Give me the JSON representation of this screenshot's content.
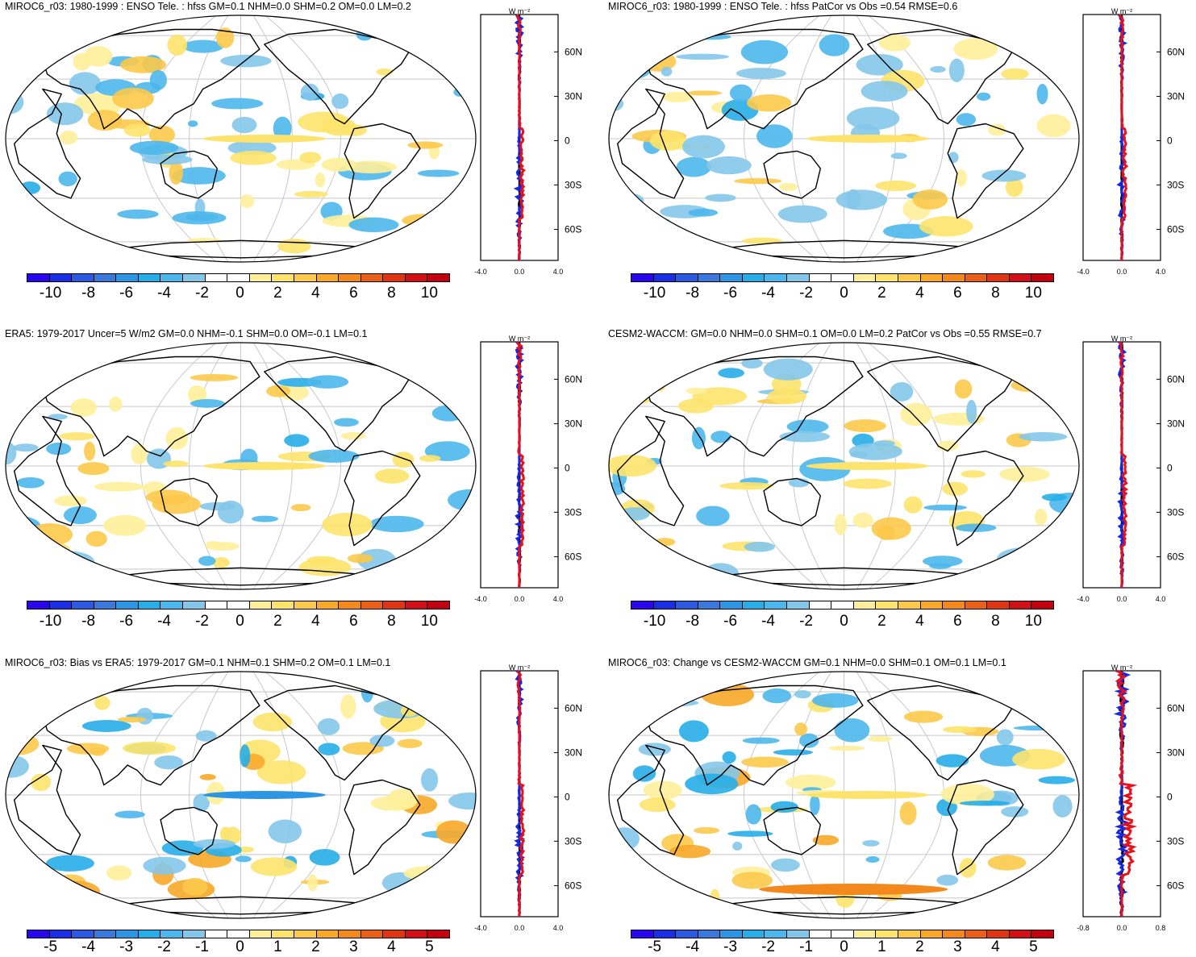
{
  "colors": {
    "nine": [
      "#2a06ef",
      "#1a2ee6",
      "#2b59df",
      "#3b78dc",
      "#2d96e4",
      "#27aee8",
      "#4cb7ec",
      "#84c6ea",
      "#ffffff",
      "#ffffff",
      "#ffef9a",
      "#fde36b",
      "#fcc94a",
      "#f8a929",
      "#f3891c",
      "#ea6018",
      "#e03514",
      "#d01016",
      "#c10010"
    ],
    "red": "#e8101a",
    "blue": "#1428e6",
    "black": "#000000"
  },
  "panels": [
    {
      "title": "MIROC6_r03: 1980-1999 : ENSO Tele. : hfss GM=0.1 NHM=0.0 SHM=0.2 OM=0.0 LM=0.2",
      "cbar_labels": [
        "-10",
        "-8",
        "-6",
        "-4",
        "-2",
        "0",
        "2",
        "4",
        "6",
        "8",
        "10"
      ],
      "zm_unit": "W m⁻²",
      "zm_xticks": [
        "-4.0",
        "0.0",
        "4.0"
      ],
      "zm_lat": [
        "60N",
        "30N",
        "0",
        "30S",
        "60S"
      ]
    },
    {
      "title": "MIROC6_r03: 1980-1999 : ENSO Tele. : hfss PatCor vs Obs =0.54 RMSE=0.6",
      "cbar_labels": [
        "-10",
        "-8",
        "-6",
        "-4",
        "-2",
        "0",
        "2",
        "4",
        "6",
        "8",
        "10"
      ],
      "zm_unit": "W m⁻²",
      "zm_xticks": [
        "-4.0",
        "0.0",
        "4.0"
      ],
      "zm_lat": [
        "60N",
        "30N",
        "0",
        "30S",
        "60S"
      ]
    },
    {
      "title": "ERA5: 1979-2017 Uncer=5 W/m2 GM=0.0 NHM=-0.1 SHM=0.0 OM=-0.1 LM=0.1",
      "cbar_labels": [
        "-10",
        "-8",
        "-6",
        "-4",
        "-2",
        "0",
        "2",
        "4",
        "6",
        "8",
        "10"
      ],
      "zm_unit": "W m⁻²",
      "zm_xticks": [
        "-4.0",
        "0.0",
        "4.0"
      ],
      "zm_lat": [
        "60N",
        "30N",
        "0",
        "30S",
        "60S"
      ]
    },
    {
      "title": "CESM2-WACCM: GM=0.0 NHM=0.0 SHM=0.1 OM=0.0 LM=0.2 PatCor vs Obs =0.55 RMSE=0.7",
      "cbar_labels": [
        "-10",
        "-8",
        "-6",
        "-4",
        "-2",
        "0",
        "2",
        "4",
        "6",
        "8",
        "10"
      ],
      "zm_unit": "W m⁻²",
      "zm_xticks": [
        "-4.0",
        "0.0",
        "4.0"
      ],
      "zm_lat": [
        "60N",
        "30N",
        "0",
        "30S",
        "60S"
      ]
    },
    {
      "title": "MIROC6_r03: Bias vs ERA5: 1979-2017 GM=0.1 NHM=0.1 SHM=0.2 OM=0.1 LM=0.1",
      "cbar_labels": [
        "-5",
        "-4",
        "-3",
        "-2",
        "-1",
        "0",
        "1",
        "2",
        "3",
        "4",
        "5"
      ],
      "zm_unit": "W m⁻²",
      "zm_xticks": [
        "-4.0",
        "0.0",
        "4.0"
      ],
      "zm_lat": [
        "60N",
        "30N",
        "0",
        "30S",
        "60S"
      ]
    },
    {
      "title": "MIROC6_r03: Change vs CESM2-WACCM GM=0.1 NHM=0.0 SHM=0.1 OM=0.1 LM=0.1",
      "cbar_labels": [
        "-5",
        "-4",
        "-3",
        "-2",
        "-1",
        "0",
        "1",
        "2",
        "3",
        "4",
        "5"
      ],
      "zm_unit": "W m⁻²",
      "zm_xticks": [
        "-0.8",
        "0.0",
        "0.8"
      ],
      "zm_lat": [
        "60N",
        "30N",
        "0",
        "30S",
        "60S"
      ]
    }
  ]
}
